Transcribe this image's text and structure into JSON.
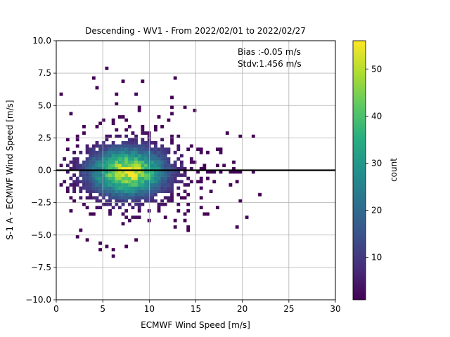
{
  "chart_data": {
    "type": "heatmap",
    "title": "Descending - WV1 - From 2022/02/01 to 2022/02/27",
    "xlabel": "ECMWF Wind Speed [m/s]",
    "ylabel": "S-1 A - ECMWF Wind Speed [m/s]",
    "xlim": [
      0,
      30
    ],
    "ylim": [
      -10,
      10
    ],
    "xticks": [
      "0",
      "5",
      "10",
      "15",
      "20",
      "25",
      "30"
    ],
    "yticks": [
      "−10.0",
      "−7.5",
      "−5.0",
      "−2.5",
      "0.0",
      "2.5",
      "5.0",
      "7.5",
      "10.0"
    ],
    "grid": true,
    "zero_line": 0,
    "annotation": {
      "bias": "Bias :-0.05 m/s",
      "stdv": "Stdv:1.456 m/s"
    },
    "colorbar": {
      "label": "count",
      "colormap": "viridis",
      "range": [
        1,
        56
      ],
      "ticks": [
        "10",
        "20",
        "30",
        "40",
        "50"
      ]
    },
    "bin_size": {
      "x": 0.35,
      "y": 0.25
    },
    "density_peak": {
      "x": 7.5,
      "y": -0.25,
      "count": 56
    },
    "density_spread": {
      "x": 2.8,
      "y": 1.25
    }
  }
}
